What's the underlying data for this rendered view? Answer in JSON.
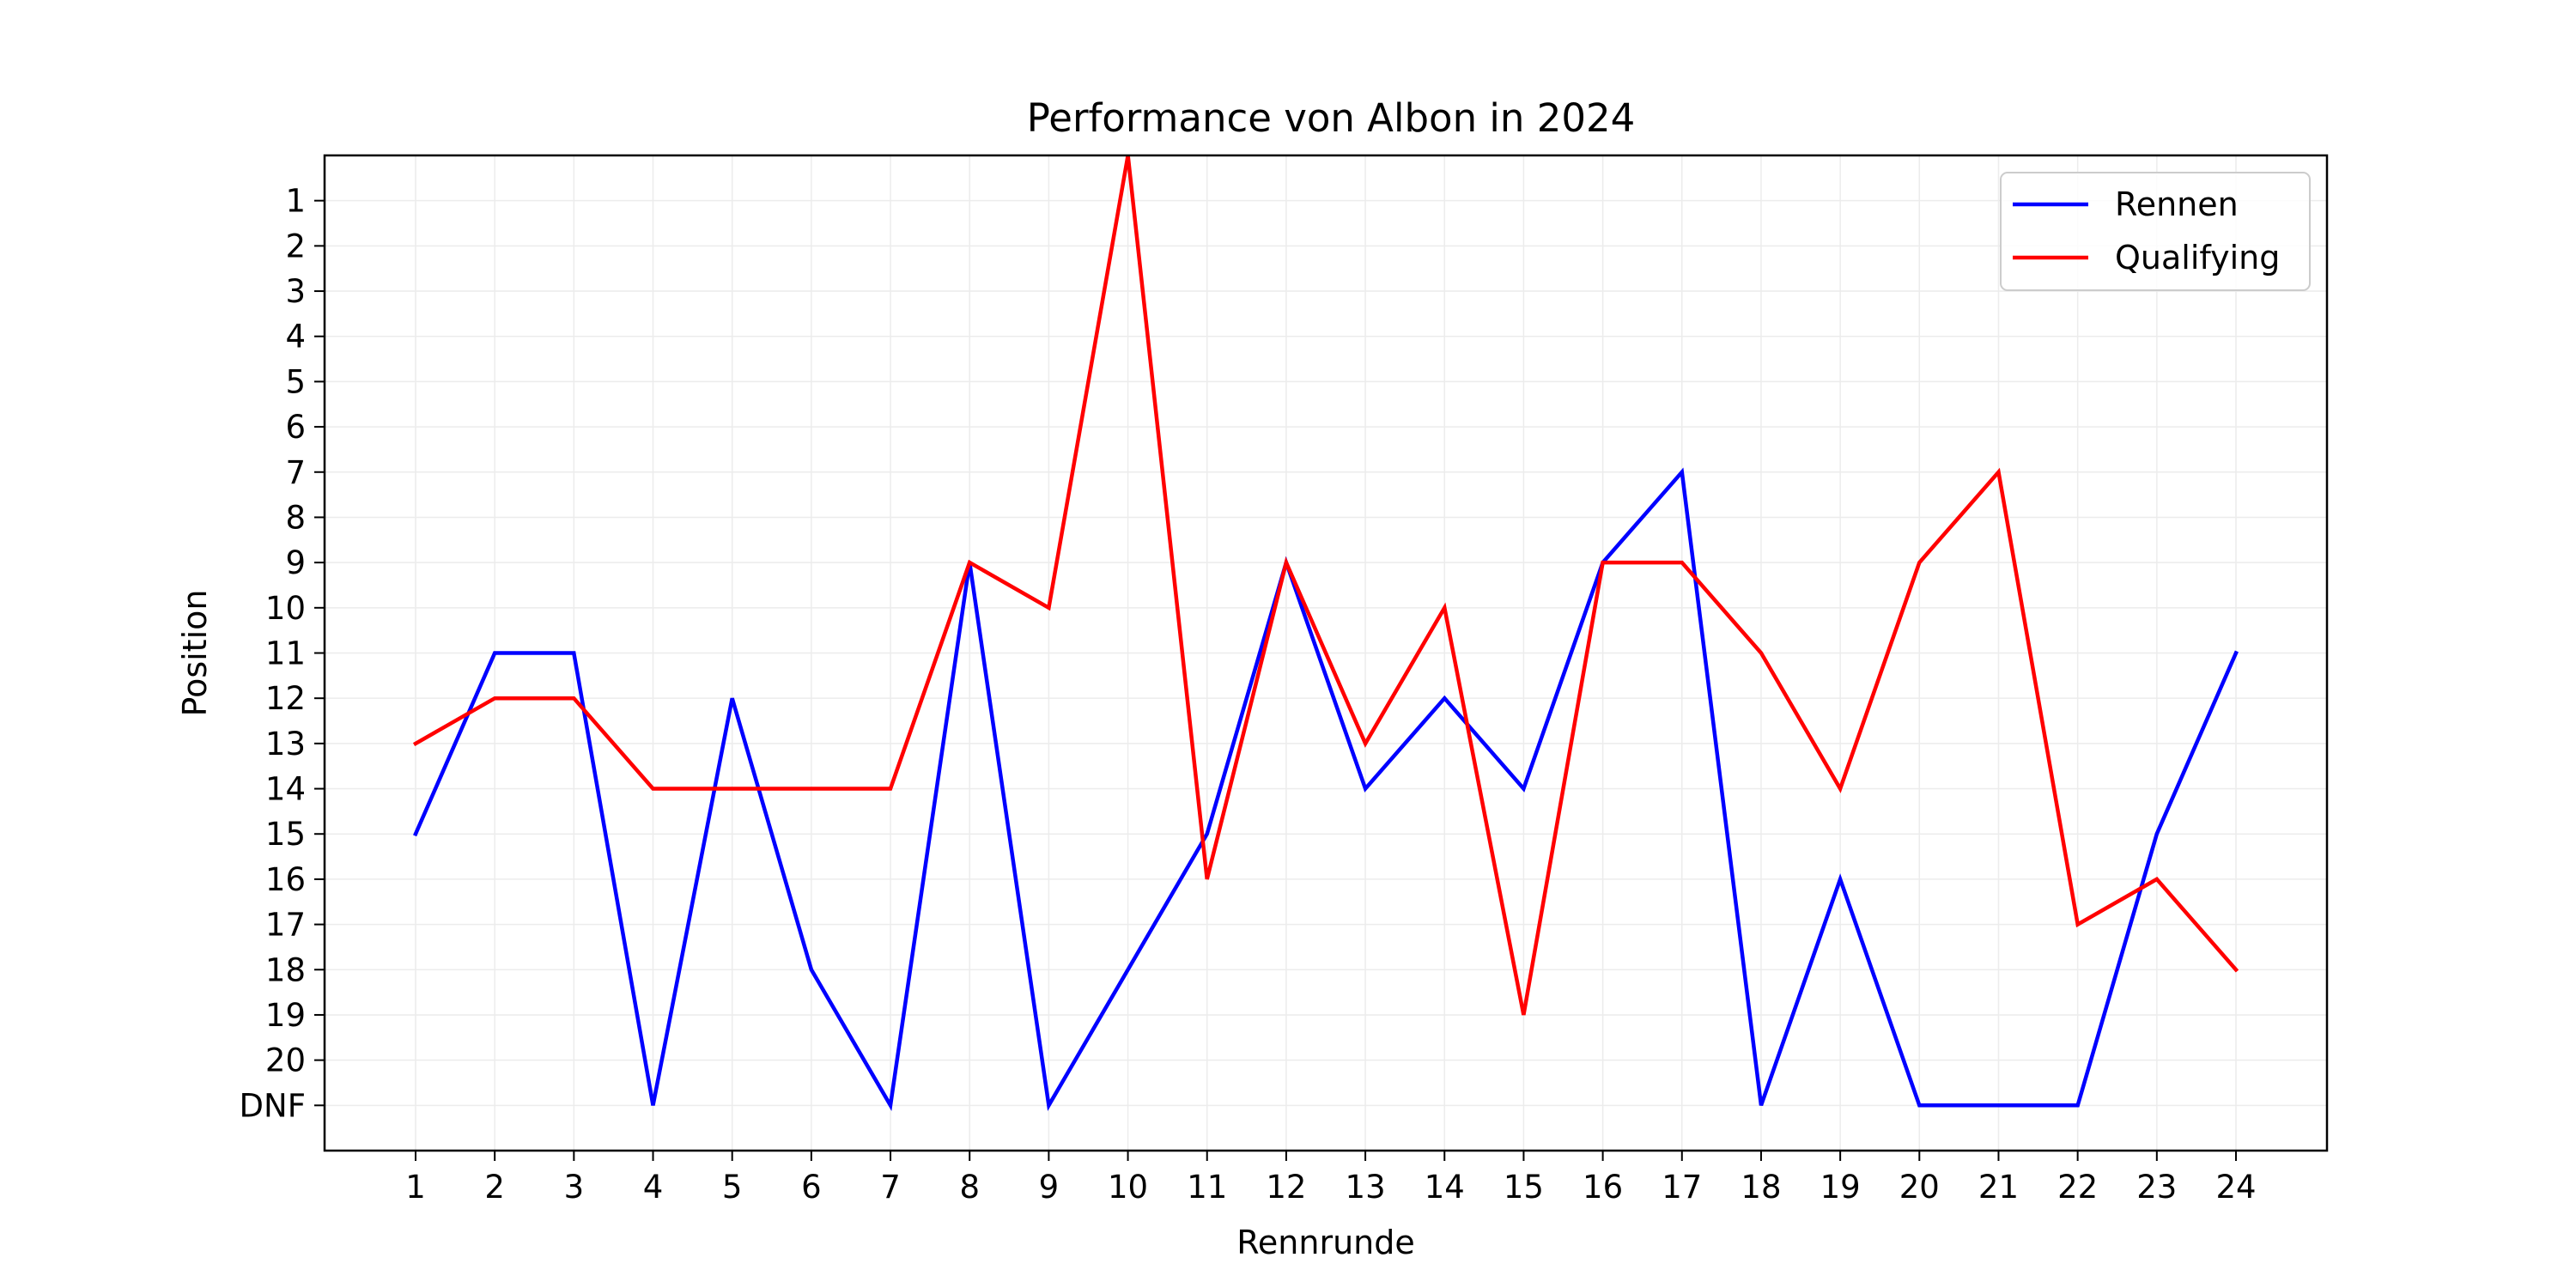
{
  "chart_data": {
    "type": "line",
    "title": "Performance von Albon in 2024",
    "xlabel": "Rennrunde",
    "ylabel": "Position",
    "x": [
      1,
      2,
      3,
      4,
      5,
      6,
      7,
      8,
      9,
      10,
      11,
      12,
      13,
      14,
      15,
      16,
      17,
      18,
      19,
      20,
      21,
      22,
      23,
      24
    ],
    "x_ticks": [
      "1",
      "2",
      "3",
      "4",
      "5",
      "6",
      "7",
      "8",
      "9",
      "10",
      "11",
      "12",
      "13",
      "14",
      "15",
      "16",
      "17",
      "18",
      "19",
      "20",
      "21",
      "22",
      "23",
      "24"
    ],
    "y_ticks": [
      "1",
      "2",
      "3",
      "4",
      "5",
      "6",
      "7",
      "8",
      "9",
      "10",
      "11",
      "12",
      "13",
      "14",
      "15",
      "16",
      "17",
      "18",
      "19",
      "20",
      "DNF"
    ],
    "y_tick_values": [
      1,
      2,
      3,
      4,
      5,
      6,
      7,
      8,
      9,
      10,
      11,
      12,
      13,
      14,
      15,
      16,
      17,
      18,
      19,
      20,
      21
    ],
    "ylim": [
      22,
      0
    ],
    "xlim": [
      -0.15,
      25.15
    ],
    "y_inverted": true,
    "grid": true,
    "legend_position": "top-right",
    "series": [
      {
        "name": "Rennen",
        "color": "#0000ff",
        "values": [
          15,
          11,
          11,
          21,
          12,
          18,
          21,
          9,
          21,
          18,
          15,
          9,
          14,
          12,
          14,
          9,
          7,
          21,
          16,
          21,
          21,
          21,
          15,
          11
        ]
      },
      {
        "name": "Qualifying",
        "color": "#ff0000",
        "values": [
          13,
          12,
          12,
          14,
          14,
          14,
          14,
          9,
          10,
          0,
          16,
          9,
          13,
          10,
          19,
          9,
          9,
          11,
          14,
          9,
          7,
          17,
          16,
          18
        ]
      }
    ]
  }
}
